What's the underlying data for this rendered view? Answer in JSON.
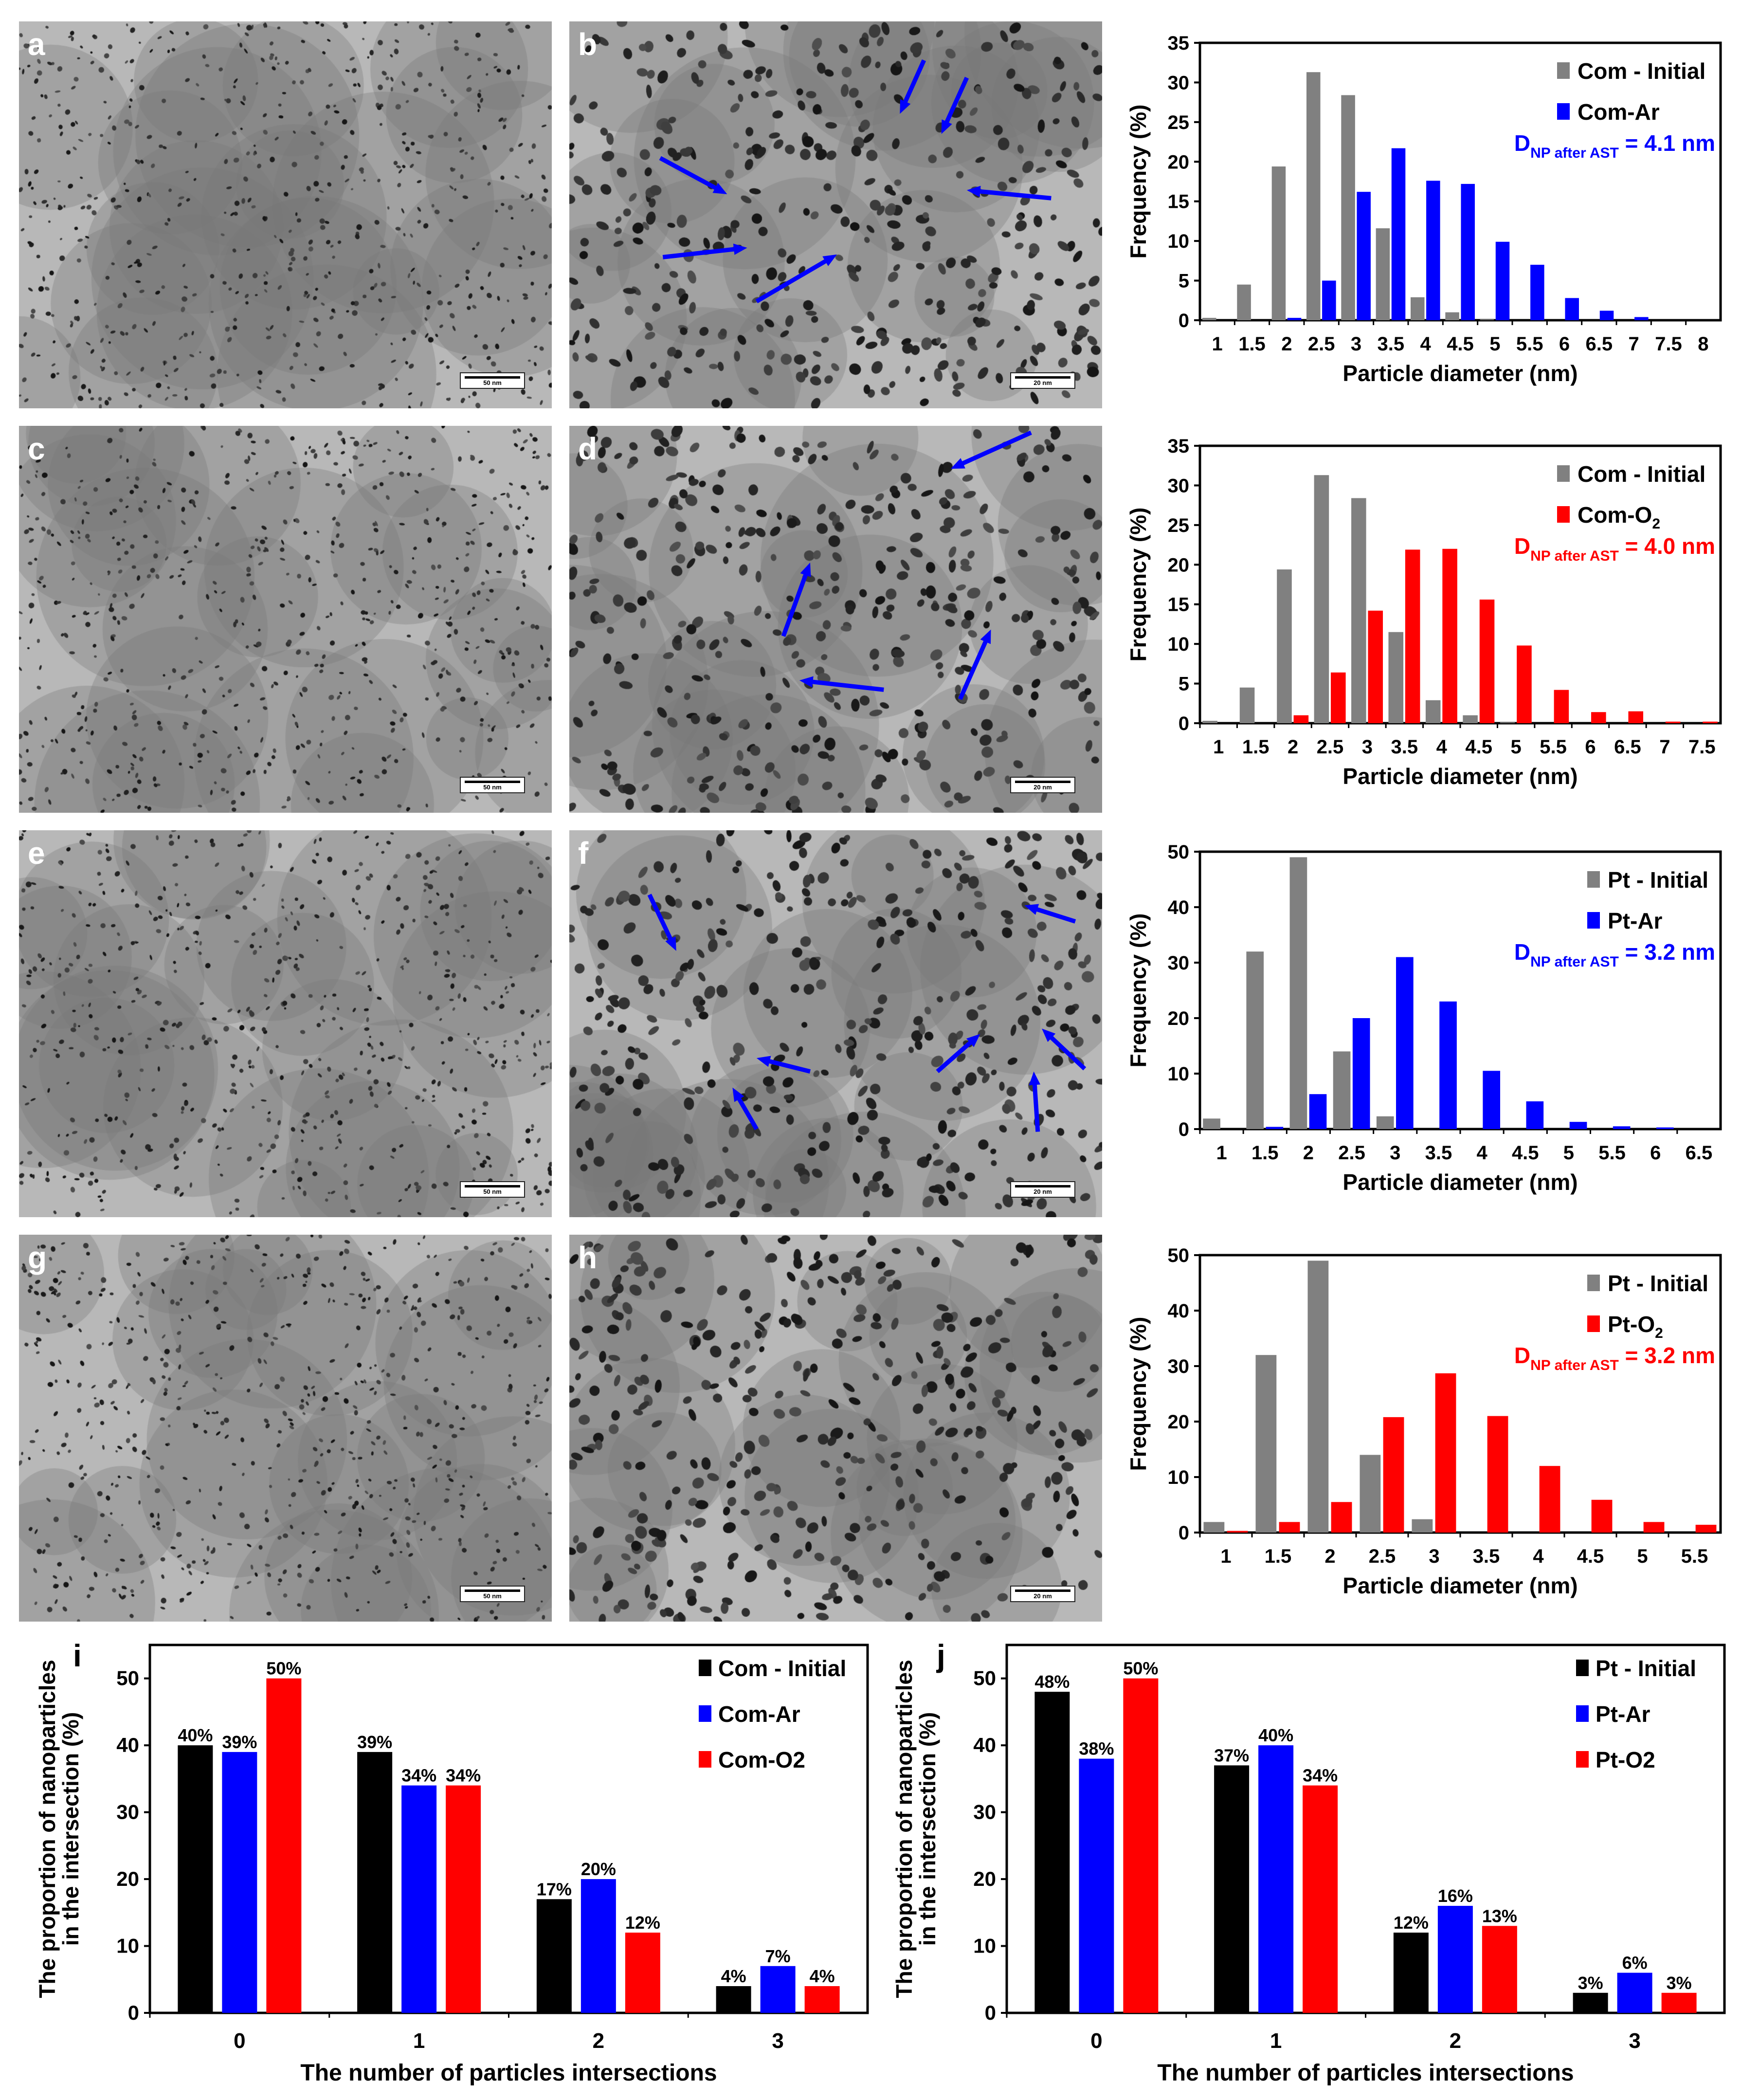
{
  "tem_panels": [
    {
      "letter": "a",
      "scale": "50 nm"
    },
    {
      "letter": "b",
      "scale": "20 nm"
    },
    {
      "letter": "c",
      "scale": "50 nm"
    },
    {
      "letter": "d",
      "scale": "20 nm"
    },
    {
      "letter": "e",
      "scale": "50 nm"
    },
    {
      "letter": "f",
      "scale": "20 nm"
    },
    {
      "letter": "g",
      "scale": "50 nm"
    },
    {
      "letter": "h",
      "scale": "20 nm"
    }
  ],
  "panel_letters": {
    "i": "i",
    "j": "j"
  },
  "colors": {
    "gray": "#808080",
    "blue": "#0000ff",
    "red": "#ff0000",
    "black": "#000000"
  },
  "chart_data": [
    {
      "type": "bar",
      "title": "",
      "xlabel": "Particle diameter (nm)",
      "ylabel": "Frequency (%)",
      "ylim": [
        0,
        35
      ],
      "yticks": [
        0,
        5,
        10,
        15,
        20,
        25,
        30,
        35
      ],
      "legend_position": "top-right",
      "categories": [
        "1",
        "1.5",
        "2",
        "2.5",
        "3",
        "3.5",
        "4",
        "4.5",
        "5",
        "5.5",
        "6",
        "6.5",
        "7",
        "7.5",
        "8"
      ],
      "series": [
        {
          "name": "Com - Initial",
          "sub": "",
          "color": "#808080",
          "values": [
            0.3,
            4.5,
            19.4,
            31.3,
            28.4,
            11.6,
            2.9,
            1.0,
            0.1,
            0,
            0,
            0,
            0,
            0,
            0
          ]
        },
        {
          "name": "Com-Ar",
          "sub": "",
          "color": "#0000ff",
          "values": [
            0,
            0,
            0.3,
            5.0,
            16.2,
            21.7,
            17.6,
            17.2,
            9.9,
            7.0,
            2.8,
            1.2,
            0.4,
            0,
            0
          ]
        }
      ],
      "annotation": {
        "main": "D",
        "sub": "NP after AST",
        "rest": " = 4.1 nm",
        "color": "#0000ff"
      }
    },
    {
      "type": "bar",
      "title": "",
      "xlabel": "Particle diameter (nm)",
      "ylabel": "Frequency (%)",
      "ylim": [
        0,
        35
      ],
      "yticks": [
        0,
        5,
        10,
        15,
        20,
        25,
        30,
        35
      ],
      "legend_position": "top-right",
      "categories": [
        "1",
        "1.5",
        "2",
        "2.5",
        "3",
        "3.5",
        "4",
        "4.5",
        "5",
        "5.5",
        "6",
        "6.5",
        "7",
        "7.5"
      ],
      "series": [
        {
          "name": "Com - Initial",
          "sub": "",
          "color": "#808080",
          "values": [
            0.3,
            4.5,
            19.4,
            31.3,
            28.4,
            11.5,
            2.9,
            1.0,
            0.1,
            0,
            0,
            0,
            0,
            0
          ]
        },
        {
          "name": "Com-O",
          "sub": "2",
          "color": "#ff0000",
          "values": [
            0,
            0,
            1.0,
            6.4,
            14.2,
            21.9,
            22.0,
            15.6,
            9.8,
            4.2,
            1.4,
            1.5,
            0.2,
            0.2
          ]
        }
      ],
      "annotation": {
        "main": "D",
        "sub": "NP after AST",
        "rest": " = 4.0 nm",
        "color": "#ff0000"
      }
    },
    {
      "type": "bar",
      "title": "",
      "xlabel": "Particle diameter (nm)",
      "ylabel": "Frequency (%)",
      "ylim": [
        0,
        50
      ],
      "yticks": [
        0,
        10,
        20,
        30,
        40,
        50
      ],
      "legend_position": "top-right",
      "categories": [
        "1",
        "1.5",
        "2",
        "2.5",
        "3",
        "3.5",
        "4",
        "4.5",
        "5",
        "5.5",
        "6",
        "6.5"
      ],
      "series": [
        {
          "name": "Pt - Initial",
          "sub": "",
          "color": "#808080",
          "values": [
            1.9,
            32.0,
            49.0,
            14.0,
            2.3,
            0,
            0,
            0,
            0,
            0,
            0,
            0
          ]
        },
        {
          "name": "Pt-Ar",
          "sub": "",
          "color": "#0000ff",
          "values": [
            0,
            0.4,
            6.3,
            20.0,
            31.0,
            23.0,
            10.5,
            5.0,
            1.3,
            0.5,
            0.3,
            0
          ]
        }
      ],
      "annotation": {
        "main": "D",
        "sub": "NP after AST",
        "rest": " = 3.2 nm",
        "color": "#0000ff"
      }
    },
    {
      "type": "bar",
      "title": "",
      "xlabel": "Particle diameter (nm)",
      "ylabel": "Frequency (%)",
      "ylim": [
        0,
        50
      ],
      "yticks": [
        0,
        10,
        20,
        30,
        40,
        50
      ],
      "legend_position": "top-right",
      "categories": [
        "1",
        "1.5",
        "2",
        "2.5",
        "3",
        "3.5",
        "4",
        "4.5",
        "5",
        "5.5"
      ],
      "series": [
        {
          "name": "Pt - Initial",
          "sub": "",
          "color": "#808080",
          "values": [
            1.9,
            32.0,
            49.0,
            14.0,
            2.4,
            0,
            0,
            0,
            0,
            0
          ]
        },
        {
          "name": "Pt-O",
          "sub": "2",
          "color": "#ff0000",
          "values": [
            0.3,
            1.9,
            5.5,
            20.8,
            28.7,
            21.0,
            12.0,
            5.9,
            1.9,
            1.4
          ]
        }
      ],
      "annotation": {
        "main": "D",
        "sub": "NP after AST",
        "rest": " = 3.2 nm",
        "color": "#ff0000"
      }
    },
    {
      "type": "bar",
      "title": "",
      "xlabel": "The number of particles intersections",
      "ylabel": [
        "The proportion of nanoparticles",
        "in the intersection (%)"
      ],
      "ylim": [
        0,
        55
      ],
      "yticks": [
        0,
        10,
        20,
        30,
        40,
        50
      ],
      "legend_position": "top-right",
      "categories": [
        "0",
        "1",
        "2",
        "3"
      ],
      "series": [
        {
          "name": "Com - Initial",
          "color": "#000000",
          "values": [
            40,
            39,
            17,
            4
          ],
          "labels": [
            "40%",
            "39%",
            "17%",
            "4%"
          ]
        },
        {
          "name": "Com-Ar",
          "color": "#0000ff",
          "values": [
            39,
            34,
            20,
            7
          ],
          "labels": [
            "39%",
            "34%",
            "20%",
            "7%"
          ]
        },
        {
          "name": "Com-O2",
          "color": "#ff0000",
          "values": [
            50,
            34,
            12,
            4
          ],
          "labels": [
            "50%",
            "34%",
            "12%",
            "4%"
          ]
        }
      ]
    },
    {
      "type": "bar",
      "title": "",
      "xlabel": "The number of particles intersections",
      "ylabel": [
        "The proportion of nanoparticles",
        "in the intersection (%)"
      ],
      "ylim": [
        0,
        55
      ],
      "yticks": [
        0,
        10,
        20,
        30,
        40,
        50
      ],
      "legend_position": "top-right",
      "categories": [
        "0",
        "1",
        "2",
        "3"
      ],
      "series": [
        {
          "name": "Pt - Initial",
          "color": "#000000",
          "values": [
            48,
            37,
            12,
            3
          ],
          "labels": [
            "48%",
            "37%",
            "12%",
            "3%"
          ]
        },
        {
          "name": "Pt-Ar",
          "color": "#0000ff",
          "values": [
            38,
            40,
            16,
            6
          ],
          "labels": [
            "38%",
            "40%",
            "16%",
            "6%"
          ]
        },
        {
          "name": "Pt-O2",
          "color": "#ff0000",
          "values": [
            50,
            34,
            13,
            3
          ],
          "labels": [
            "50%",
            "34%",
            "13%",
            "3%"
          ]
        }
      ]
    }
  ]
}
